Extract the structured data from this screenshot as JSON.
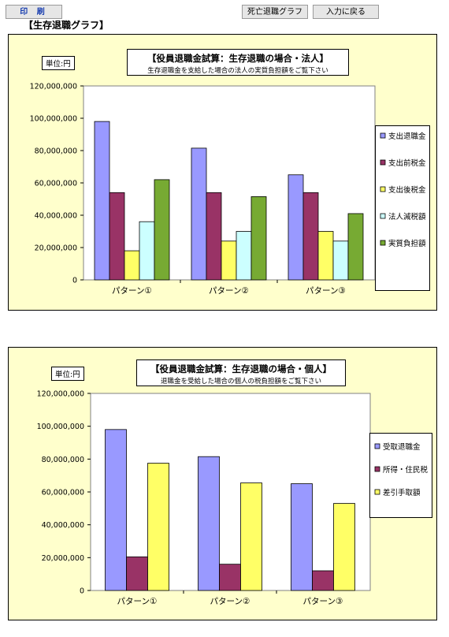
{
  "toolbar": {
    "print_label": "印 刷",
    "death_graph_label": "死亡退職グラフ",
    "back_label": "入力に戻る"
  },
  "page_title": "【生存退職グラフ】",
  "colors": {
    "purple": "#9999ff",
    "maroon": "#993366",
    "yellow": "#ffff66",
    "cyan": "#ccffff",
    "green": "#77aa33",
    "frame_bg": "#ffffcc"
  },
  "chart_data": [
    {
      "type": "bar",
      "title": "【役員退職金試算：生存退職の場合・法人】",
      "subtitle": "生存退職金を支給した場合の法人の実質負担額をご覧下さい",
      "unit_label": "単位:円",
      "categories": [
        "パターン①",
        "パターン②",
        "パターン③"
      ],
      "ylim": [
        0,
        120000000
      ],
      "yticks": [
        "0",
        "20,000,000",
        "40,000,000",
        "60,000,000",
        "80,000,000",
        "100,000,000",
        "120,000,000"
      ],
      "legend_position": "right",
      "series": [
        {
          "name": "支出退職金",
          "color": "#9999ff",
          "values": [
            98000000,
            81500000,
            65000000
          ]
        },
        {
          "name": "支出前税金",
          "color": "#993366",
          "values": [
            54000000,
            54000000,
            54000000
          ]
        },
        {
          "name": "支出後税金",
          "color": "#ffff66",
          "values": [
            18000000,
            24000000,
            30000000
          ]
        },
        {
          "name": "法人減税額",
          "color": "#ccffff",
          "values": [
            36000000,
            30000000,
            24000000
          ]
        },
        {
          "name": "実質負担額",
          "color": "#77aa33",
          "values": [
            62000000,
            51500000,
            41000000
          ]
        }
      ]
    },
    {
      "type": "bar",
      "title": "【役員退職金試算：生存退職の場合・個人】",
      "subtitle": "退職金を受給した場合の個人の税負担額をご覧下さい",
      "unit_label": "単位:円",
      "categories": [
        "パターン①",
        "パターン②",
        "パターン③"
      ],
      "ylim": [
        0,
        120000000
      ],
      "yticks": [
        "0",
        "20,000,000",
        "40,000,000",
        "60,000,000",
        "80,000,000",
        "100,000,000",
        "120,000,000"
      ],
      "legend_position": "right",
      "series": [
        {
          "name": "受取退職金",
          "color": "#9999ff",
          "values": [
            98000000,
            81500000,
            65000000
          ]
        },
        {
          "name": "所得・住民税",
          "color": "#993366",
          "values": [
            20500000,
            16000000,
            12000000
          ]
        },
        {
          "name": "差引手取額",
          "color": "#ffff66",
          "values": [
            77500000,
            65500000,
            53000000
          ]
        }
      ]
    }
  ]
}
